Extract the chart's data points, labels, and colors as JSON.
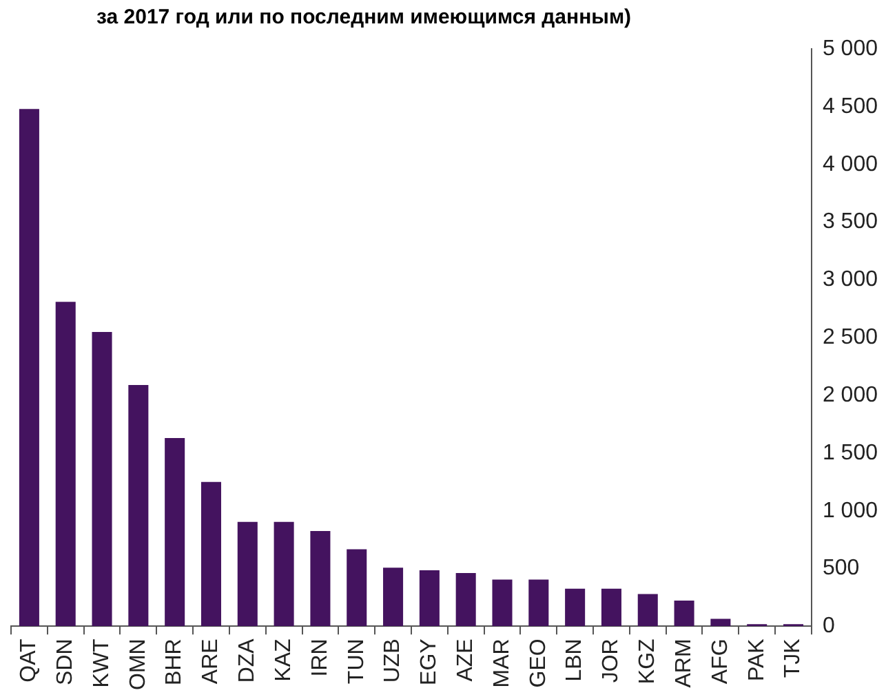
{
  "chart_data": {
    "type": "bar",
    "title": "за 2017 год или по последним имеющимся данным)",
    "categories": [
      "QAT",
      "SDN",
      "KWT",
      "OMN",
      "BHR",
      "ARE",
      "DZA",
      "KAZ",
      "IRN",
      "TUN",
      "UZB",
      "EGY",
      "AZE",
      "MAR",
      "GEO",
      "LBN",
      "JOR",
      "KGZ",
      "ARM",
      "AFG",
      "PAK",
      "TJK"
    ],
    "values": [
      4480,
      2810,
      2550,
      2090,
      1630,
      1250,
      905,
      905,
      826,
      667,
      508,
      485,
      462,
      405,
      405,
      326,
      326,
      280,
      223,
      64,
      19,
      19
    ],
    "color": "#44135f",
    "ylim": [
      0,
      5000
    ],
    "yticks": [
      0,
      {
        "value": 500,
        "label": "500"
      },
      {
        "value": 1000,
        "label": "1 000"
      },
      {
        "value": 1500,
        "label": "1 500"
      },
      {
        "value": 2000,
        "label": "2 000"
      },
      {
        "value": 2500,
        "label": "2 500"
      },
      {
        "value": 3000,
        "label": "3 000"
      },
      {
        "value": 3500,
        "label": "3 500"
      },
      {
        "value": 4000,
        "label": "4 000"
      },
      {
        "value": 4500,
        "label": "4 500"
      },
      {
        "value": 5000,
        "label": "5 000"
      }
    ],
    "grid": false,
    "legend": false
  }
}
